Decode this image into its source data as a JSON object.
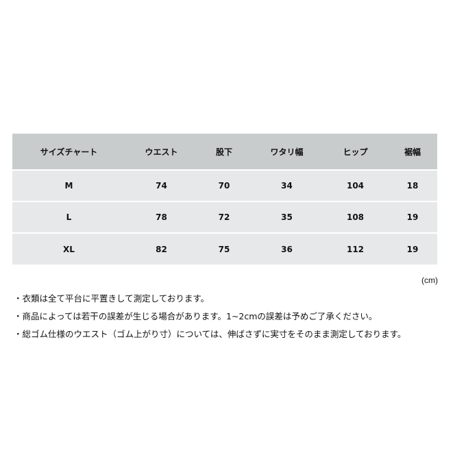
{
  "size_chart": {
    "headers": [
      "サイズチャート",
      "ウエスト",
      "股下",
      "ワタリ幅",
      "ヒップ",
      "裾幅"
    ],
    "rows": [
      [
        "M",
        "74",
        "70",
        "34",
        "104",
        "18"
      ],
      [
        "L",
        "78",
        "72",
        "35",
        "108",
        "19"
      ],
      [
        "XL",
        "82",
        "75",
        "36",
        "112",
        "19"
      ]
    ],
    "unit": "(cm)"
  },
  "notes": [
    "・衣類は全て平台に平置きして測定しております。",
    "・商品によっては若干の誤差が生じる場合があります。1~2cmの誤差は予めご了承ください。",
    "・総ゴム仕様のウエスト（ゴム上がり寸）については、伸ばさずに実寸をそのまま測定しております。"
  ],
  "colors": {
    "header_bg": "#c9cccd",
    "row_bg": "#e6e8e9"
  }
}
